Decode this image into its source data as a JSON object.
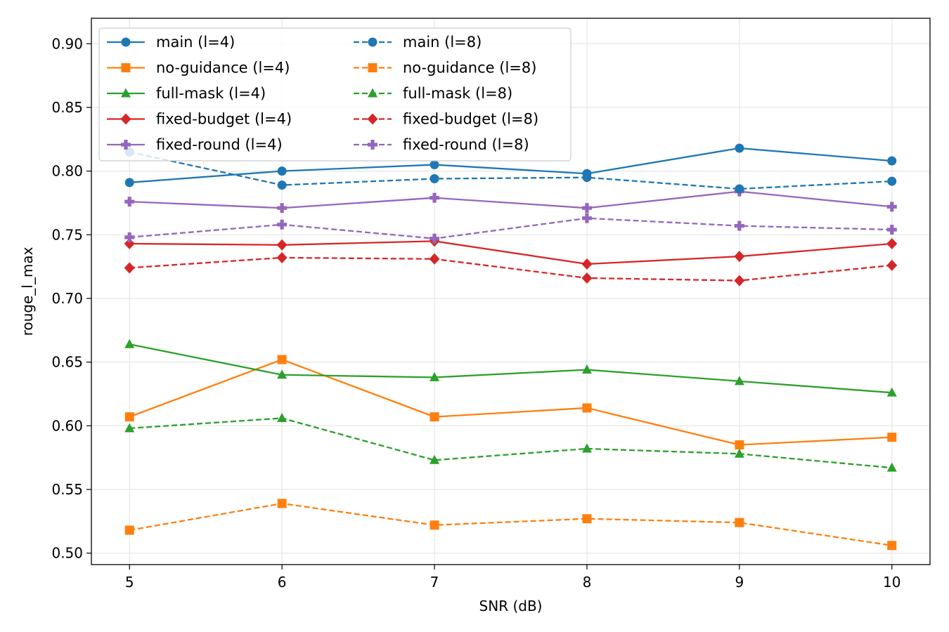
{
  "chart_data": {
    "type": "line",
    "title": "",
    "xlabel": "SNR (dB)",
    "ylabel": "rouge_l_max",
    "x": [
      5,
      6,
      7,
      8,
      9,
      10
    ],
    "xlim": [
      4.75,
      10.25
    ],
    "ylim": [
      0.491,
      0.92
    ],
    "xticks": [
      5,
      6,
      7,
      8,
      9,
      10
    ],
    "yticks": [
      0.5,
      0.55,
      0.6,
      0.65,
      0.7,
      0.75,
      0.8,
      0.85,
      0.9
    ],
    "grid": true,
    "legend_position": "top-left",
    "legend_columns": 2,
    "series": [
      {
        "name": "main (l=4)",
        "color": "#1f77b4",
        "marker": "circle",
        "linestyle": "solid",
        "values": [
          0.791,
          0.8,
          0.805,
          0.798,
          0.818,
          0.808
        ]
      },
      {
        "name": "no-guidance (l=4)",
        "color": "#ff7f0e",
        "marker": "square",
        "linestyle": "solid",
        "values": [
          0.607,
          0.652,
          0.607,
          0.614,
          0.585,
          0.591
        ]
      },
      {
        "name": "full-mask (l=4)",
        "color": "#2ca02c",
        "marker": "triangle",
        "linestyle": "solid",
        "values": [
          0.664,
          0.64,
          0.638,
          0.644,
          0.635,
          0.626
        ]
      },
      {
        "name": "fixed-budget (l=4)",
        "color": "#d62728",
        "marker": "diamond",
        "linestyle": "solid",
        "values": [
          0.743,
          0.742,
          0.745,
          0.727,
          0.733,
          0.743
        ]
      },
      {
        "name": "fixed-round (l=4)",
        "color": "#9467bd",
        "marker": "plus",
        "linestyle": "solid",
        "values": [
          0.776,
          0.771,
          0.779,
          0.771,
          0.784,
          0.772
        ]
      },
      {
        "name": "main (l=8)",
        "color": "#1f77b4",
        "marker": "circle",
        "linestyle": "dashed",
        "values": [
          0.815,
          0.789,
          0.794,
          0.795,
          0.786,
          0.792
        ]
      },
      {
        "name": "no-guidance (l=8)",
        "color": "#ff7f0e",
        "marker": "square",
        "linestyle": "dashed",
        "values": [
          0.518,
          0.539,
          0.522,
          0.527,
          0.524,
          0.506
        ]
      },
      {
        "name": "full-mask (l=8)",
        "color": "#2ca02c",
        "marker": "triangle",
        "linestyle": "dashed",
        "values": [
          0.598,
          0.606,
          0.573,
          0.582,
          0.578,
          0.567
        ]
      },
      {
        "name": "fixed-budget (l=8)",
        "color": "#d62728",
        "marker": "diamond",
        "linestyle": "dashed",
        "values": [
          0.724,
          0.732,
          0.731,
          0.716,
          0.714,
          0.726
        ]
      },
      {
        "name": "fixed-round (l=8)",
        "color": "#9467bd",
        "marker": "plus",
        "linestyle": "dashed",
        "values": [
          0.748,
          0.758,
          0.747,
          0.763,
          0.757,
          0.754
        ]
      }
    ]
  }
}
